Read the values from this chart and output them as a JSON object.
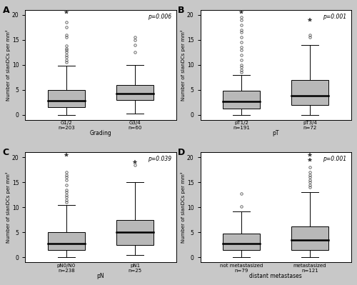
{
  "panels": [
    {
      "label": "A",
      "p_value": "p=0.006",
      "xlabel": "Grading",
      "ylabel": "Number of slanDCs per mm²",
      "ylim": [
        -1,
        21
      ],
      "yticks": [
        0,
        5,
        10,
        15,
        20
      ],
      "groups": [
        {
          "name": "G1/2\nn=203",
          "median": 2.8,
          "q1": 1.5,
          "q3": 5.0,
          "whisker_low": 0.0,
          "whisker_high": 9.8,
          "outliers_circle": [
            10.5,
            11.0,
            11.5,
            12.0,
            12.5,
            13.0,
            13.2,
            13.8,
            15.5,
            16.0,
            17.5,
            18.5
          ],
          "outliers_star": [
            20.5
          ]
        },
        {
          "name": "G3/4\nn=60",
          "median": 4.2,
          "q1": 3.0,
          "q3": 6.0,
          "whisker_low": 0.2,
          "whisker_high": 10.0,
          "outliers_circle": [
            12.5,
            14.0,
            15.0,
            15.5
          ],
          "outliers_star": []
        }
      ]
    },
    {
      "label": "B",
      "p_value": "p=0.001",
      "xlabel": "pT",
      "ylabel": "Number of slanDCs per mm²",
      "ylim": [
        -1,
        21
      ],
      "yticks": [
        0,
        5,
        10,
        15,
        20
      ],
      "groups": [
        {
          "name": "pT1/2\nn=191",
          "median": 2.7,
          "q1": 1.2,
          "q3": 4.8,
          "whisker_low": 0.0,
          "whisker_high": 8.0,
          "outliers_circle": [
            8.5,
            9.0,
            9.5,
            10.0,
            11.0,
            12.0,
            13.0,
            13.5,
            14.5,
            15.5,
            16.5,
            17.0,
            18.0,
            19.0,
            19.5
          ],
          "outliers_star": [
            20.5
          ]
        },
        {
          "name": "pT3/4\nn=72",
          "median": 3.8,
          "q1": 2.0,
          "q3": 7.0,
          "whisker_low": 0.0,
          "whisker_high": 14.0,
          "outliers_circle": [
            15.5,
            16.0
          ],
          "outliers_star": [
            19.0
          ]
        }
      ]
    },
    {
      "label": "C",
      "p_value": "p=0.039",
      "xlabel": "pN",
      "ylabel": "Number of slanDCs per mm²",
      "ylim": [
        -1,
        21
      ],
      "yticks": [
        0,
        5,
        10,
        15,
        20
      ],
      "groups": [
        {
          "name": "pN0/N0\nn=238",
          "median": 2.8,
          "q1": 1.5,
          "q3": 5.0,
          "whisker_low": 0.0,
          "whisker_high": 10.5,
          "outliers_circle": [
            11.0,
            11.5,
            12.0,
            12.5,
            13.0,
            13.5,
            14.5,
            15.5,
            16.0,
            16.5,
            17.0
          ],
          "outliers_star": [
            20.5
          ]
        },
        {
          "name": "pN1\nn=25",
          "median": 5.0,
          "q1": 2.5,
          "q3": 7.5,
          "whisker_low": 0.5,
          "whisker_high": 15.0,
          "outliers_circle": [
            18.5
          ],
          "outliers_star": [
            19.0
          ]
        }
      ]
    },
    {
      "label": "D",
      "p_value": "p=0.001",
      "xlabel": "distant metastases",
      "ylabel": "Number of slanDCs per mm²",
      "ylim": [
        -1,
        21
      ],
      "yticks": [
        0,
        5,
        10,
        15,
        20
      ],
      "groups": [
        {
          "name": "not metastasized\nn=79",
          "median": 2.8,
          "q1": 1.5,
          "q3": 4.8,
          "whisker_low": 0.0,
          "whisker_high": 9.2,
          "outliers_circle": [
            10.2,
            12.8
          ],
          "outliers_star": []
        },
        {
          "name": "metastasized\nn=121",
          "median": 3.5,
          "q1": 1.5,
          "q3": 6.2,
          "whisker_low": 0.0,
          "whisker_high": 13.0,
          "outliers_circle": [
            14.0,
            14.5,
            15.0,
            15.5,
            16.0,
            16.5,
            17.0,
            18.0
          ],
          "outliers_star": [
            19.5,
            20.5
          ]
        }
      ]
    }
  ],
  "box_color": "#b8b8b8",
  "box_edge_color": "#000000",
  "median_color": "#000000",
  "whisker_color": "#000000",
  "outlier_circle_color": "#555555",
  "outlier_star_color": "#333333",
  "background_color": "#c8c8c8",
  "plot_bg_color": "#ffffff",
  "border_color": "#000000"
}
